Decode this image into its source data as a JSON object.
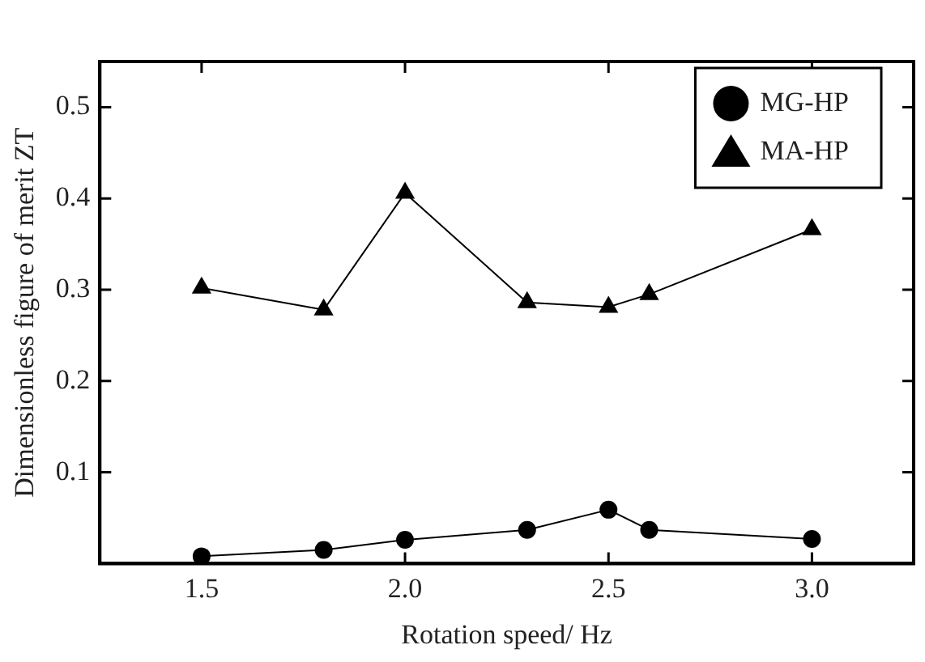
{
  "chart_data": {
    "type": "line",
    "xlabel": "Rotation speed/ Hz",
    "ylabel": "Dimensionless figure of merit ZT",
    "x": [
      1.5,
      1.8,
      2.0,
      2.3,
      2.5,
      2.6,
      3.0
    ],
    "series": [
      {
        "name": "MG-HP",
        "color": "#000000",
        "marker": "circle",
        "values": [
          0.008,
          0.015,
          0.026,
          0.037,
          0.059,
          0.037,
          0.027
        ]
      },
      {
        "name": "MA-HP",
        "color": "#000000",
        "marker": "triangle",
        "values": [
          0.302,
          0.278,
          0.406,
          0.286,
          0.281,
          0.295,
          0.366
        ]
      }
    ],
    "xlim": [
      1.25,
      3.25
    ],
    "xticks": [
      1.5,
      {
        "value": 2,
        "label": "2.0"
      },
      2.5,
      {
        "value": 3,
        "label": "3.0"
      }
    ],
    "ylim": [
      0,
      0.55
    ],
    "yticks": [
      0.1,
      0.2,
      0.3,
      0.4,
      0.5
    ],
    "grid": false,
    "legend": "top right",
    "line_style": "solid"
  }
}
